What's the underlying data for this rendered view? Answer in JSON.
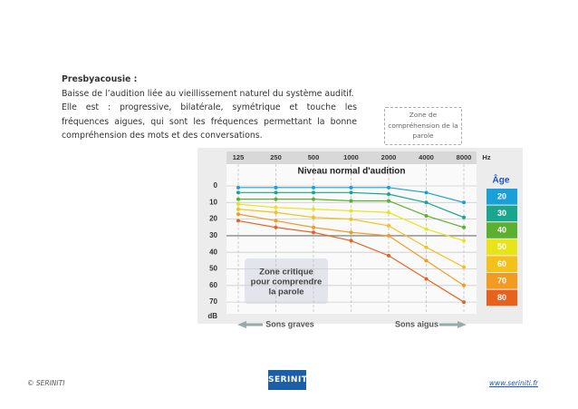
{
  "text": {
    "title": "Presbyacousie :",
    "paragraphs": [
      "Baisse de l’audition liée au vieillissement naturel du système auditif.",
      "Elle est : progressive, bilatérale, symétrique et touche les fréquences aigues, qui sont les fréquences permettant la bonne compréhension des mots et des conversations."
    ]
  },
  "note": "Zone de compréhension de la parole",
  "chart": {
    "type": "line",
    "title": "Niveau normal d'audition",
    "x_unit": "Hz",
    "y_unit": "dB",
    "legend_title": "Âge",
    "categories": [
      125,
      250,
      500,
      1000,
      2000,
      4000,
      8000
    ],
    "ylim": [
      0,
      80
    ],
    "yticks": [
      0,
      10,
      20,
      30,
      40,
      50,
      60,
      70
    ],
    "annotation": [
      "Zone critique",
      "pour comprendre",
      "la parole"
    ],
    "low_label": "Sons graves",
    "high_label": "Sons aigus",
    "series": [
      {
        "name": "20",
        "color": "#1aa0d9",
        "values": [
          1,
          1,
          1,
          1,
          1,
          4,
          10
        ]
      },
      {
        "name": "30",
        "color": "#1aa58f",
        "values": [
          4,
          4,
          4,
          4,
          5,
          10,
          19
        ]
      },
      {
        "name": "40",
        "color": "#5bb030",
        "values": [
          8,
          8,
          8,
          9,
          9,
          18,
          25
        ]
      },
      {
        "name": "50",
        "color": "#e8e41a",
        "values": [
          11,
          13,
          14,
          15,
          16,
          26,
          33
        ]
      },
      {
        "name": "60",
        "color": "#f4c11c",
        "values": [
          14,
          16,
          19,
          20,
          24,
          37,
          49
        ]
      },
      {
        "name": "70",
        "color": "#f39a20",
        "values": [
          17,
          21,
          25,
          28,
          30,
          45,
          60
        ]
      },
      {
        "name": "80",
        "color": "#e8621e",
        "values": [
          21,
          25,
          28,
          33,
          42,
          56,
          70
        ]
      }
    ]
  },
  "footer": {
    "copyright": "© SERINITI",
    "logo": "SERINITI",
    "website": "www.seriniti.fr"
  }
}
